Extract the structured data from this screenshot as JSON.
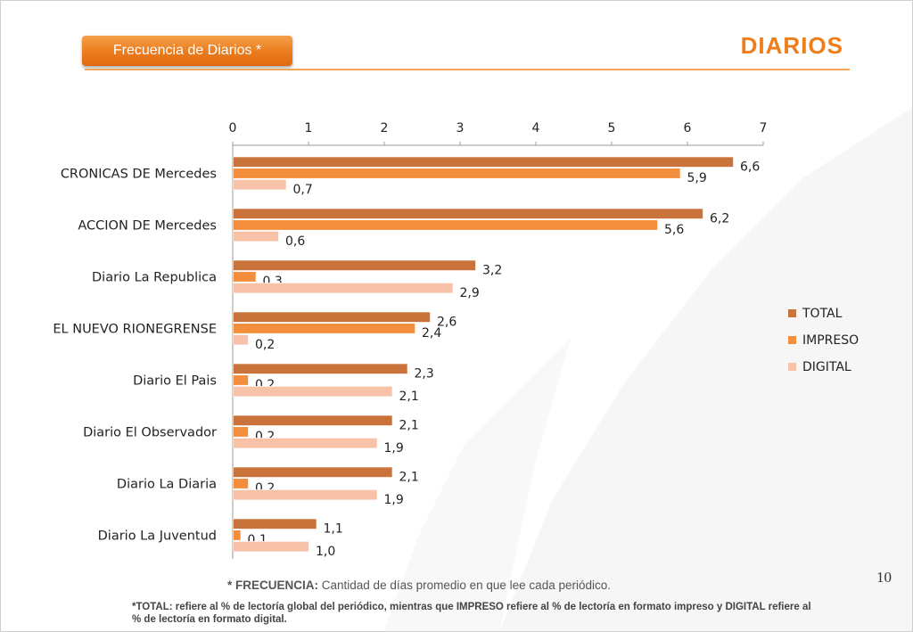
{
  "header": {
    "badge_label": "Frecuencia de Diarios  *",
    "title": "DIARIOS"
  },
  "colors": {
    "accent": "#ef7d1a",
    "total": "#c9733b",
    "impreso": "#f28e3c",
    "digital": "#f7c2a8"
  },
  "chart_data": {
    "type": "bar",
    "orientation": "horizontal",
    "categories": [
      "CRONICAS DE Mercedes",
      "ACCION DE Mercedes",
      "Diario La Republica",
      "EL NUEVO RIONEGRENSE",
      "Diario El Pais",
      "Diario El Observador",
      "Diario La Diaria",
      "Diario La Juventud"
    ],
    "series": [
      {
        "name": "TOTAL",
        "values": [
          6.6,
          6.2,
          3.2,
          2.6,
          2.3,
          2.1,
          2.1,
          1.1
        ],
        "labels": [
          "6,6",
          "6,2",
          "3,2",
          "2,6",
          "2,3",
          "2,1",
          "2,1",
          "1,1"
        ]
      },
      {
        "name": "IMPRESO",
        "values": [
          5.9,
          5.6,
          0.3,
          2.4,
          0.2,
          0.2,
          0.2,
          0.1
        ],
        "labels": [
          "5,9",
          "5,6",
          "0,3",
          "2,4",
          "0,2",
          "0,2",
          "0,2",
          "0,1"
        ]
      },
      {
        "name": "DIGITAL",
        "values": [
          0.7,
          0.6,
          2.9,
          0.2,
          2.1,
          1.9,
          1.9,
          1.0
        ],
        "labels": [
          "0,7",
          "0,6",
          "2,9",
          "0,2",
          "2,1",
          "1,9",
          "1,9",
          "1,0"
        ]
      }
    ],
    "xlim": [
      0,
      7
    ],
    "xticks": [
      "0",
      "1",
      "2",
      "3",
      "4",
      "5",
      "6",
      "7"
    ],
    "x_axis_position": "top",
    "grid": false,
    "legend_position": "right"
  },
  "footer": {
    "page_number": "10",
    "footnote_label": "* FRECUENCIA:",
    "footnote_text": " Cantidad  de días promedio en que lee cada periódico.",
    "note": "*TOTAL: refiere al % de lectoría global del periódico, mientras que IMPRESO refiere al % de lectoría en formato impreso y DIGITAL refiere al % de lectoría en formato digital."
  }
}
